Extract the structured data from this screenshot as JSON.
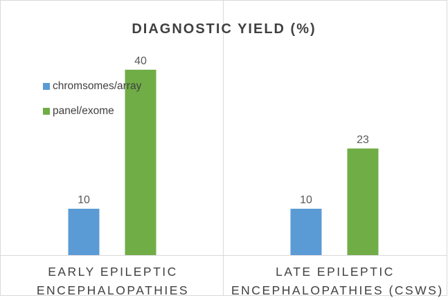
{
  "chart_data": {
    "type": "bar",
    "title": "DIAGNOSTIC YIELD (%)",
    "categories": [
      [
        "EARLY EPILEPTIC",
        "ENCEPHALOPATHIES"
      ],
      [
        "LATE EPILEPTIC",
        "ENCEPHALOPATHIES (CSWS)"
      ]
    ],
    "series": [
      {
        "name": "chromsomes/array",
        "color": "#5b9bd5",
        "values": [
          10,
          10
        ]
      },
      {
        "name": "panel/exome",
        "color": "#70ad47",
        "values": [
          40,
          23
        ]
      }
    ],
    "ylim": [
      0,
      54
    ],
    "xlabel": "",
    "ylabel": "",
    "grid": false,
    "legend_position": "top-left",
    "data_labels": true
  }
}
